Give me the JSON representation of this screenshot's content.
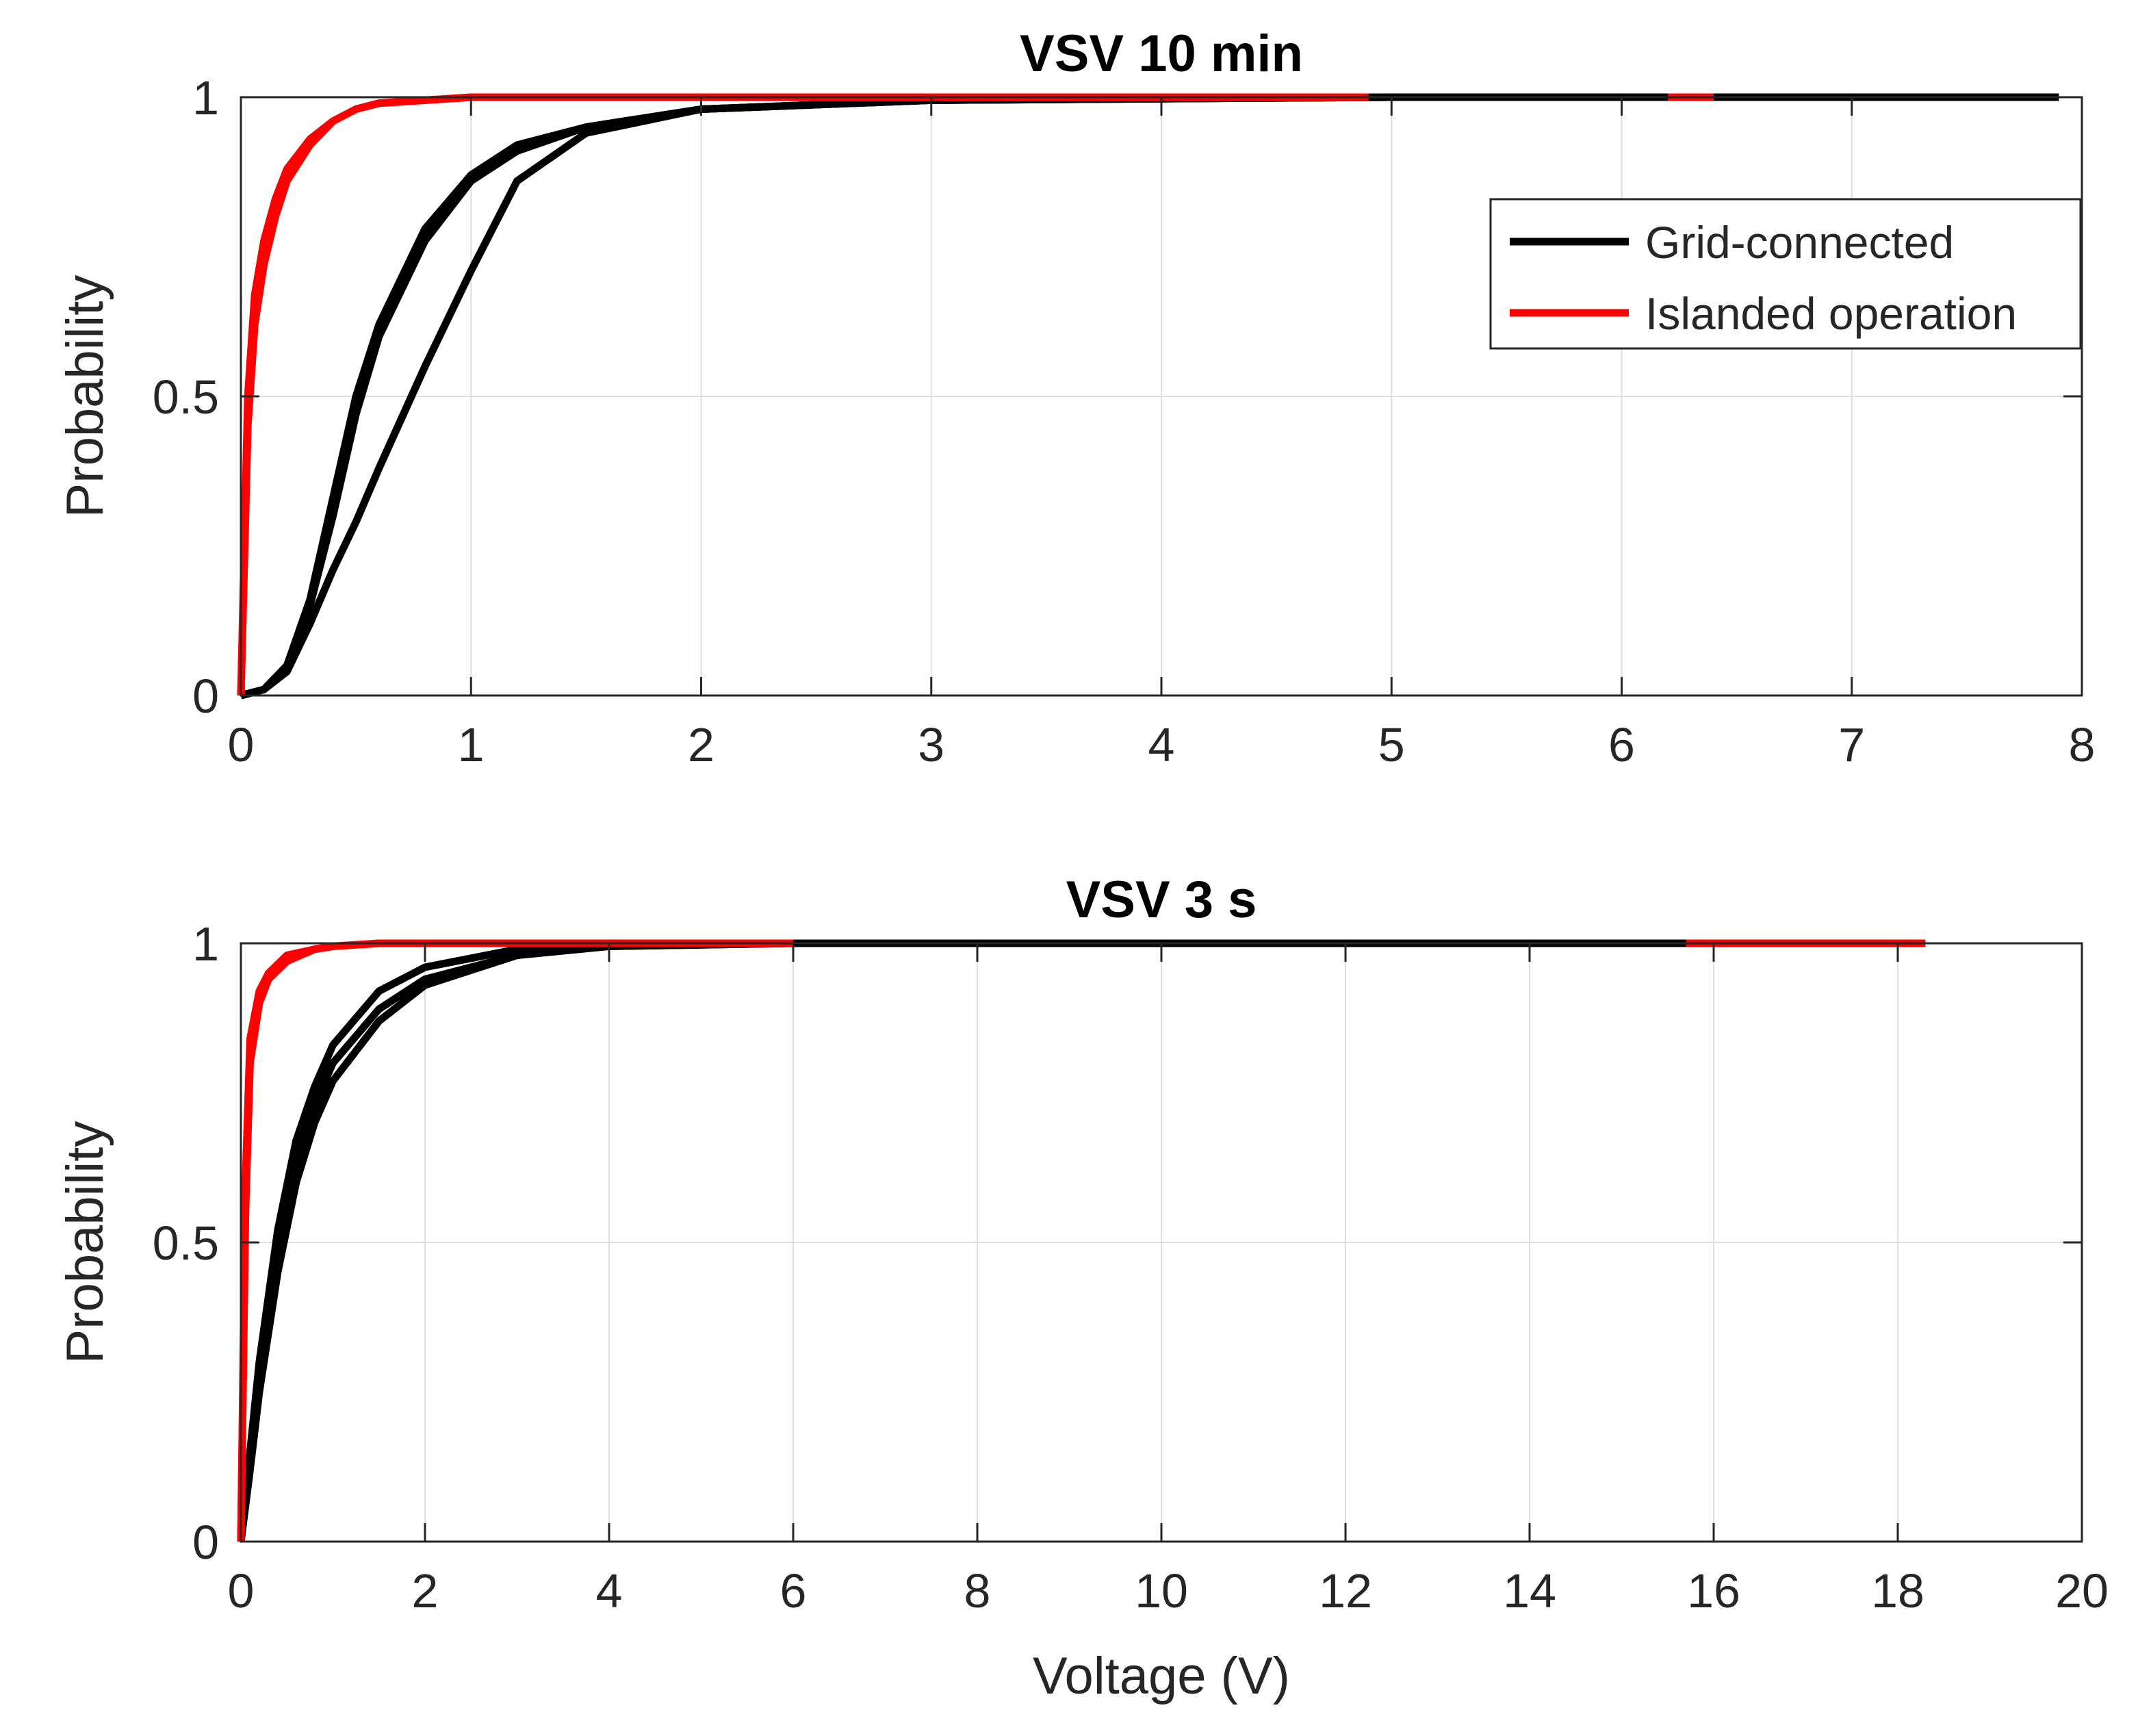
{
  "chart_data": [
    {
      "type": "line",
      "title": "VSV 10 min",
      "xlabel": "",
      "ylabel": "Probability",
      "xlim": [
        0,
        8
      ],
      "ylim": [
        0,
        1
      ],
      "xticks": [
        "0",
        "1",
        "2",
        "3",
        "4",
        "5",
        "6",
        "7",
        "8"
      ],
      "yticks": [
        "0",
        "0.5",
        "1"
      ],
      "grid": true,
      "legend": {
        "position": "top-right",
        "entries": [
          {
            "label": "Grid-connected",
            "color": "#000000"
          },
          {
            "label": "Islanded operation",
            "color": "#ff0000"
          }
        ]
      },
      "series": [
        {
          "name": "Grid-connected",
          "color": "#000000",
          "x": [
            0,
            0.1,
            0.2,
            0.3,
            0.4,
            0.5,
            0.6,
            0.8,
            1.0,
            1.2,
            1.5,
            2.0,
            3.0,
            5.0,
            7.9
          ],
          "y": [
            0,
            0.01,
            0.05,
            0.16,
            0.33,
            0.5,
            0.62,
            0.78,
            0.87,
            0.92,
            0.95,
            0.98,
            0.995,
            1.0,
            1.0
          ]
        },
        {
          "name": "Grid-connected",
          "color": "#000000",
          "x": [
            0,
            0.1,
            0.2,
            0.3,
            0.4,
            0.5,
            0.6,
            0.8,
            1.0,
            1.2,
            1.5,
            2.0,
            3.0,
            5.0
          ],
          "y": [
            0,
            0.01,
            0.05,
            0.15,
            0.3,
            0.47,
            0.6,
            0.76,
            0.86,
            0.91,
            0.95,
            0.98,
            0.995,
            1.0
          ]
        },
        {
          "name": "Grid-connected",
          "color": "#000000",
          "x": [
            0,
            0.1,
            0.2,
            0.3,
            0.4,
            0.5,
            0.6,
            0.8,
            1.0,
            1.2,
            1.5,
            2.0,
            3.0,
            5.0
          ],
          "y": [
            0,
            0.01,
            0.04,
            0.12,
            0.21,
            0.29,
            0.38,
            0.55,
            0.71,
            0.86,
            0.94,
            0.98,
            0.995,
            1.0
          ]
        },
        {
          "name": "Islanded operation",
          "color": "#ff0000",
          "x": [
            0,
            0.03,
            0.06,
            0.1,
            0.15,
            0.2,
            0.3,
            0.4,
            0.5,
            0.6,
            0.8,
            1.0,
            1.5,
            3.0,
            4.9
          ],
          "y": [
            0,
            0.45,
            0.62,
            0.72,
            0.8,
            0.86,
            0.92,
            0.96,
            0.98,
            0.99,
            0.995,
            1.0,
            1.0,
            1.0,
            1.0
          ]
        },
        {
          "name": "Islanded operation",
          "color": "#ff0000",
          "x": [
            0,
            0.03,
            0.06,
            0.1,
            0.15,
            0.2,
            0.3,
            0.4,
            0.5,
            0.6,
            0.8,
            1.0,
            1.5,
            3.0,
            4.9
          ],
          "y": [
            0,
            0.5,
            0.67,
            0.76,
            0.83,
            0.88,
            0.93,
            0.96,
            0.98,
            0.99,
            0.995,
            1.0,
            1.0,
            1.0,
            1.0
          ]
        },
        {
          "name": "Islanded operation",
          "color": "#ff0000",
          "x": [
            6.2,
            6.4
          ],
          "y": [
            1.0,
            1.0
          ]
        }
      ]
    },
    {
      "type": "line",
      "title": "VSV 3 s",
      "xlabel": "Voltage (V)",
      "ylabel": "Probability",
      "xlim": [
        0,
        20
      ],
      "ylim": [
        0,
        1
      ],
      "xticks": [
        "0",
        "2",
        "4",
        "6",
        "8",
        "10",
        "12",
        "14",
        "16",
        "18",
        "20"
      ],
      "yticks": [
        "0",
        "0.5",
        "1"
      ],
      "grid": true,
      "series": [
        {
          "name": "Grid-connected",
          "color": "#000000",
          "x": [
            0,
            0.1,
            0.2,
            0.4,
            0.6,
            0.8,
            1.0,
            1.5,
            2.0,
            3.0,
            4.0,
            6.0,
            15.7
          ],
          "y": [
            0,
            0.15,
            0.3,
            0.52,
            0.67,
            0.76,
            0.83,
            0.92,
            0.96,
            0.99,
            1.0,
            1.0,
            1.0
          ]
        },
        {
          "name": "Grid-connected",
          "color": "#000000",
          "x": [
            0,
            0.1,
            0.2,
            0.4,
            0.6,
            0.8,
            1.0,
            1.5,
            2.0,
            3.0,
            4.0,
            6.0
          ],
          "y": [
            0,
            0.13,
            0.27,
            0.49,
            0.64,
            0.73,
            0.8,
            0.89,
            0.94,
            0.98,
            0.995,
            1.0
          ]
        },
        {
          "name": "Grid-connected",
          "color": "#000000",
          "x": [
            0,
            0.1,
            0.2,
            0.4,
            0.6,
            0.8,
            1.0,
            1.5,
            2.0,
            3.0,
            4.0,
            6.0
          ],
          "y": [
            0,
            0.12,
            0.25,
            0.45,
            0.6,
            0.7,
            0.77,
            0.87,
            0.93,
            0.98,
            0.995,
            1.0
          ]
        },
        {
          "name": "Islanded operation",
          "color": "#ff0000",
          "x": [
            0,
            0.05,
            0.1,
            0.2,
            0.3,
            0.5,
            0.8,
            1.0,
            1.5,
            2.0,
            18.3
          ],
          "y": [
            0,
            0.55,
            0.8,
            0.9,
            0.94,
            0.97,
            0.99,
            0.995,
            1.0,
            1.0,
            1.0
          ]
        },
        {
          "name": "Islanded operation",
          "color": "#ff0000",
          "x": [
            0,
            0.05,
            0.1,
            0.2,
            0.3,
            0.5,
            0.8,
            1.0,
            1.5,
            2.0
          ],
          "y": [
            0,
            0.6,
            0.84,
            0.92,
            0.95,
            0.98,
            0.99,
            0.995,
            1.0,
            1.0
          ]
        },
        {
          "name": "Grid-connected",
          "color": "#000000",
          "x": [
            6.0,
            15.7
          ],
          "y": [
            1.0,
            1.0
          ]
        }
      ]
    }
  ]
}
